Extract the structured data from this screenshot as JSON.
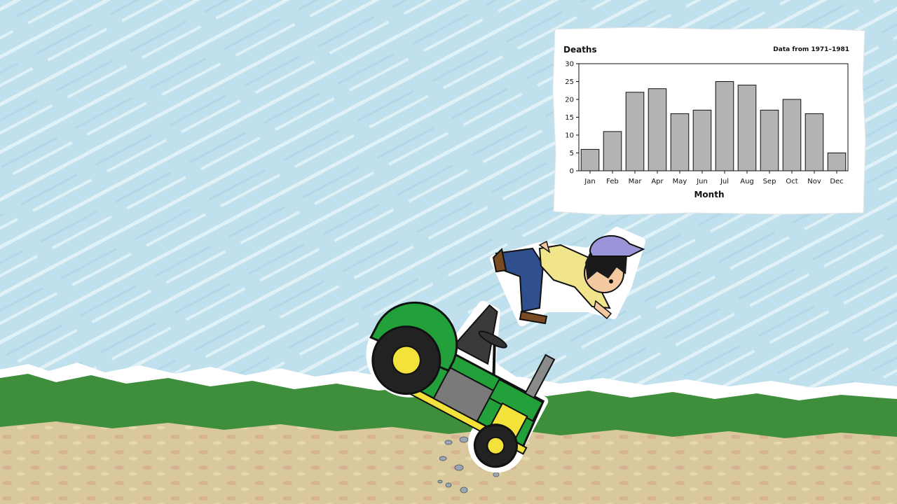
{
  "colors": {
    "sky": "#c4e4ee",
    "grass": "#3f8f3c",
    "dirt": "#d9c79a",
    "bar_fill": "#b3b3b3",
    "tractor_green": "#22a03a",
    "tractor_yellow": "#f2e23a",
    "cap": "#9a95d8"
  },
  "illustration": {
    "subjects": [
      "tractor",
      "boy",
      "cap",
      "rocks"
    ]
  },
  "chart_data": {
    "type": "bar",
    "title": "Deaths",
    "subtitle": "Data from 1971–1981",
    "xlabel": "Month",
    "ylabel": "",
    "categories": [
      "Jan",
      "Feb",
      "Mar",
      "Apr",
      "May",
      "Jun",
      "Jul",
      "Aug",
      "Sep",
      "Oct",
      "Nov",
      "Dec"
    ],
    "values": [
      6,
      11,
      22,
      23,
      16,
      17,
      25,
      24,
      17,
      20,
      16,
      5
    ],
    "ylim": [
      0,
      30
    ],
    "yticks": [
      0,
      5,
      10,
      15,
      20,
      25,
      30
    ],
    "grid": false,
    "legend": "none"
  }
}
